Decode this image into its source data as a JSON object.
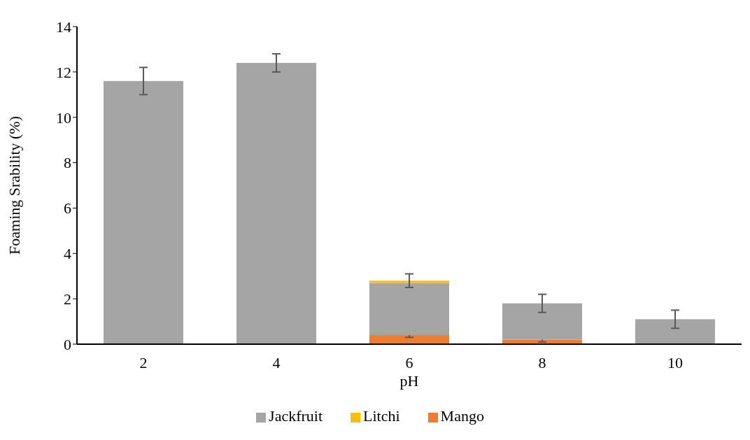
{
  "chart_data": {
    "type": "bar",
    "stacked": true,
    "xlabel": "pH",
    "ylabel": "Foaming Srability (%)",
    "categories": [
      "2",
      "4",
      "6",
      "8",
      "10"
    ],
    "series": [
      {
        "name": "Mango",
        "color": "#ed7d31",
        "values": [
          null,
          null,
          0.4,
          0.2,
          null
        ],
        "errors": [
          null,
          null,
          0.1,
          0.1,
          null
        ]
      },
      {
        "name": "Jackfruit",
        "color": "#a5a5a5",
        "values": [
          11.6,
          12.4,
          2.3,
          1.6,
          1.1
        ],
        "errors": [
          0.6,
          0.4,
          null,
          0.4,
          0.4
        ]
      },
      {
        "name": "Litchi",
        "color": "#ffc000",
        "values": [
          null,
          null,
          0.1,
          null,
          null
        ],
        "errors": [
          null,
          null,
          0.3,
          null,
          null
        ]
      }
    ],
    "ylim": [
      0,
      14
    ],
    "yticks": [
      0,
      2,
      4,
      6,
      8,
      10,
      12,
      14
    ],
    "grid": false,
    "legend": "bottom"
  }
}
